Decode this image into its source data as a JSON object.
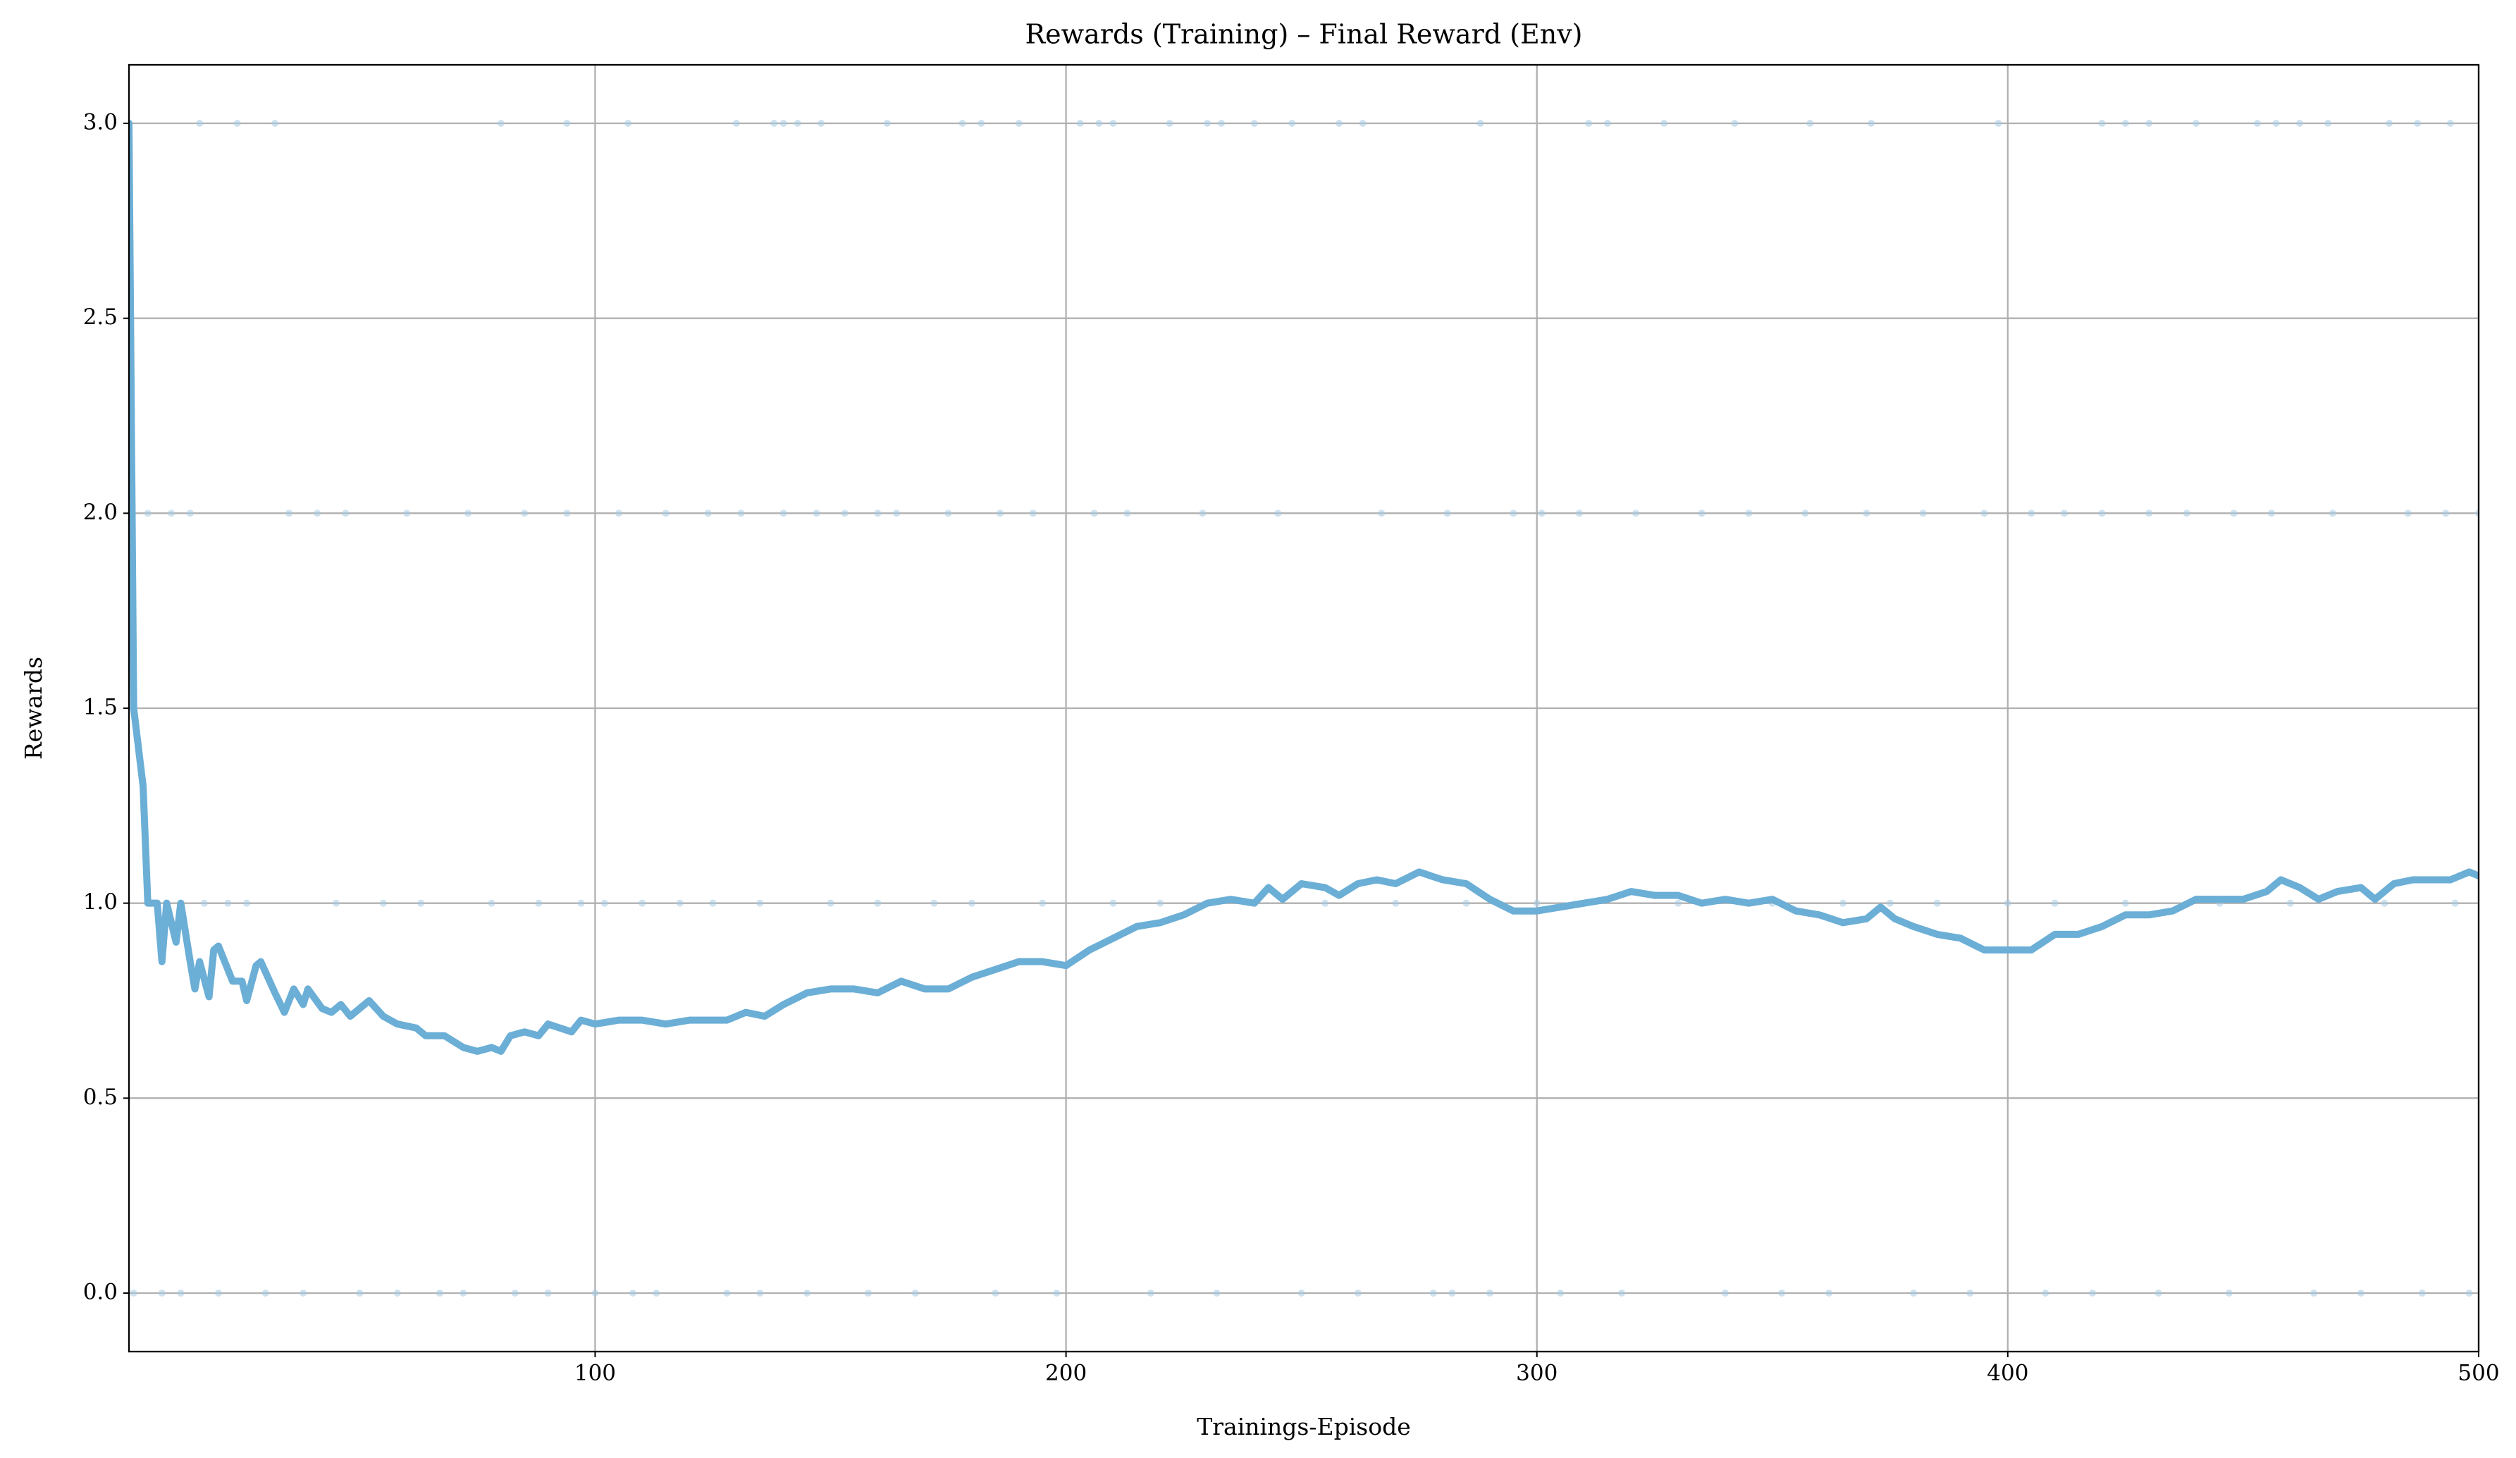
{
  "chart_data": {
    "type": "line",
    "title": "Rewards (Training) – Final Reward (Env)",
    "x_label": "Trainings-Episode",
    "y_label": "Rewards",
    "xlim": [
      1,
      500
    ],
    "ylim": [
      -0.15,
      3.15
    ],
    "xticks": [
      100,
      200,
      300,
      400,
      500
    ],
    "yticks": [
      {
        "value": 0,
        "label": "0.0"
      },
      {
        "value": 0.5,
        "label": "0.5"
      },
      {
        "value": 1,
        "label": "1.0"
      },
      {
        "value": 1.5,
        "label": "1.5"
      },
      {
        "value": 2,
        "label": "2.0"
      },
      {
        "value": 2.5,
        "label": "2.5"
      },
      {
        "value": 3,
        "label": "3.0"
      }
    ],
    "grid": true,
    "series": [
      {
        "type": "scatter",
        "color": "#a6cbe3",
        "x": [
          1,
          16,
          24,
          32,
          80,
          94,
          107,
          130,
          138,
          140,
          143,
          148,
          162,
          178,
          182,
          190,
          203,
          207,
          210,
          222,
          230,
          233,
          240,
          248,
          258,
          263,
          288,
          311,
          315,
          327,
          342,
          358,
          371,
          398,
          420,
          425,
          430,
          440,
          453,
          457,
          462,
          468,
          481,
          487,
          494
        ],
        "values": [
          3,
          3,
          3,
          3,
          3,
          3,
          3,
          3,
          3,
          3,
          3,
          3,
          3,
          3,
          3,
          3,
          3,
          3,
          3,
          3,
          3,
          3,
          3,
          3,
          3,
          3,
          3,
          3,
          3,
          3,
          3,
          3,
          3,
          3,
          3,
          3,
          3,
          3,
          3,
          3,
          3,
          3,
          3,
          3,
          3
        ]
      },
      {
        "type": "scatter",
        "color": "#a6cbe3",
        "x": [
          5,
          10,
          14,
          35,
          41,
          47,
          60,
          73,
          85,
          94,
          105,
          115,
          124,
          131,
          140,
          147,
          153,
          160,
          164,
          175,
          186,
          193,
          206,
          213,
          229,
          245,
          267,
          281,
          295,
          301,
          309,
          321,
          335,
          345,
          357,
          370,
          382,
          395,
          405,
          412,
          420,
          430,
          438,
          448,
          456,
          469,
          485,
          493,
          500
        ],
        "values": [
          2,
          2,
          2,
          2,
          2,
          2,
          2,
          2,
          2,
          2,
          2,
          2,
          2,
          2,
          2,
          2,
          2,
          2,
          2,
          2,
          2,
          2,
          2,
          2,
          2,
          2,
          2,
          2,
          2,
          2,
          2,
          2,
          2,
          2,
          2,
          2,
          2,
          2,
          2,
          2,
          2,
          2,
          2,
          2,
          2,
          2,
          2,
          2,
          2
        ]
      },
      {
        "type": "scatter",
        "color": "#a6cbe3",
        "x": [
          17,
          22,
          26,
          45,
          55,
          63,
          78,
          88,
          97,
          102,
          110,
          118,
          125,
          135,
          150,
          160,
          172,
          180,
          195,
          210,
          220,
          240,
          255,
          270,
          285,
          300,
          330,
          350,
          365,
          375,
          385,
          400,
          410,
          425,
          445,
          460,
          480,
          495
        ],
        "values": [
          1,
          1,
          1,
          1,
          1,
          1,
          1,
          1,
          1,
          1,
          1,
          1,
          1,
          1,
          1,
          1,
          1,
          1,
          1,
          1,
          1,
          1,
          1,
          1,
          1,
          1,
          1,
          1,
          1,
          1,
          1,
          1,
          1,
          1,
          1,
          1,
          1,
          1
        ]
      },
      {
        "type": "scatter",
        "color": "#a6cbe3",
        "x": [
          2,
          8,
          12,
          20,
          30,
          38,
          50,
          58,
          67,
          72,
          83,
          90,
          100,
          108,
          113,
          128,
          135,
          145,
          158,
          168,
          185,
          198,
          218,
          232,
          250,
          262,
          278,
          282,
          290,
          305,
          318,
          340,
          352,
          362,
          380,
          392,
          408,
          418,
          432,
          447,
          465,
          475,
          488,
          498
        ],
        "values": [
          0,
          0,
          0,
          0,
          0,
          0,
          0,
          0,
          0,
          0,
          0,
          0,
          0,
          0,
          0,
          0,
          0,
          0,
          0,
          0,
          0,
          0,
          0,
          0,
          0,
          0,
          0,
          0,
          0,
          0,
          0,
          0,
          0,
          0,
          0,
          0,
          0,
          0,
          0,
          0,
          0,
          0,
          0,
          0
        ]
      },
      {
        "type": "line",
        "color": "#6baed6",
        "x": [
          1,
          2,
          4,
          5,
          7,
          8,
          9,
          11,
          12,
          14,
          15,
          16,
          18,
          19,
          20,
          23,
          25,
          26,
          28,
          29,
          32,
          34,
          36,
          38,
          39,
          42,
          44,
          46,
          48,
          52,
          55,
          58,
          62,
          64,
          68,
          72,
          75,
          78,
          80,
          82,
          85,
          88,
          90,
          95,
          97,
          100,
          105,
          110,
          115,
          120,
          125,
          128,
          132,
          136,
          140,
          145,
          150,
          155,
          160,
          165,
          170,
          175,
          180,
          185,
          190,
          195,
          200,
          205,
          210,
          215,
          220,
          225,
          230,
          235,
          240,
          243,
          246,
          250,
          255,
          258,
          262,
          266,
          270,
          275,
          280,
          285,
          290,
          295,
          300,
          305,
          310,
          315,
          320,
          325,
          330,
          335,
          340,
          345,
          350,
          355,
          360,
          365,
          370,
          373,
          376,
          380,
          385,
          390,
          395,
          400,
          405,
          410,
          415,
          420,
          425,
          430,
          435,
          440,
          445,
          450,
          455,
          458,
          462,
          466,
          470,
          475,
          478,
          482,
          486,
          490,
          494,
          498,
          500
        ],
        "values": [
          3.0,
          1.5,
          1.3,
          1.0,
          1.0,
          0.85,
          1.0,
          0.9,
          1.0,
          0.85,
          0.78,
          0.85,
          0.76,
          0.88,
          0.89,
          0.8,
          0.8,
          0.75,
          0.84,
          0.85,
          0.77,
          0.72,
          0.78,
          0.74,
          0.78,
          0.73,
          0.72,
          0.74,
          0.71,
          0.75,
          0.71,
          0.69,
          0.68,
          0.66,
          0.66,
          0.63,
          0.62,
          0.63,
          0.62,
          0.66,
          0.67,
          0.66,
          0.69,
          0.67,
          0.7,
          0.69,
          0.7,
          0.7,
          0.69,
          0.7,
          0.7,
          0.7,
          0.72,
          0.71,
          0.74,
          0.77,
          0.78,
          0.78,
          0.77,
          0.8,
          0.78,
          0.78,
          0.81,
          0.83,
          0.85,
          0.85,
          0.84,
          0.88,
          0.91,
          0.94,
          0.95,
          0.97,
          1.0,
          1.01,
          1.0,
          1.04,
          1.01,
          1.05,
          1.04,
          1.02,
          1.05,
          1.06,
          1.05,
          1.08,
          1.06,
          1.05,
          1.01,
          0.98,
          0.98,
          0.99,
          1.0,
          1.01,
          1.03,
          1.02,
          1.02,
          1.0,
          1.01,
          1.0,
          1.01,
          0.98,
          0.97,
          0.95,
          0.96,
          0.99,
          0.96,
          0.94,
          0.92,
          0.91,
          0.88,
          0.88,
          0.88,
          0.92,
          0.92,
          0.94,
          0.97,
          0.97,
          0.98,
          1.01,
          1.01,
          1.01,
          1.03,
          1.06,
          1.04,
          1.01,
          1.03,
          1.04,
          1.01,
          1.05,
          1.06,
          1.06,
          1.06,
          1.08,
          1.07
        ]
      }
    ]
  }
}
